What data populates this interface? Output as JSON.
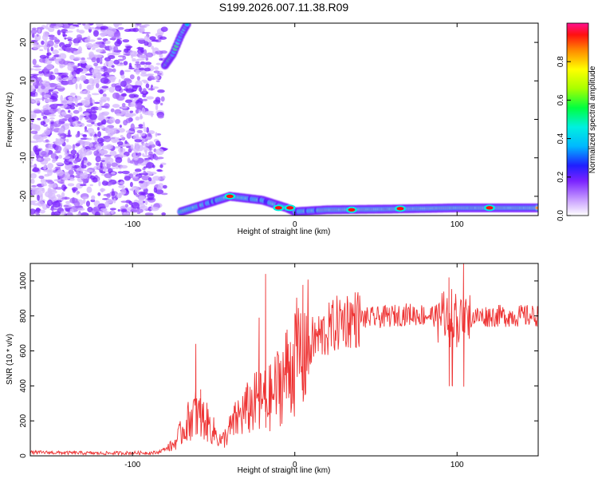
{
  "title": "S199.2026.007.11.38.R09",
  "chart_data": [
    {
      "type": "heatmap",
      "xlabel": "Height of straight line (km)",
      "ylabel": "Frequency (Hz)",
      "xlim": [
        -163,
        150
      ],
      "ylim": [
        -25,
        25
      ],
      "x_ticks": [
        -100,
        0,
        100
      ],
      "y_ticks": [
        -20,
        -10,
        0,
        10,
        20
      ],
      "colorbar": {
        "label": "Normalized spectral amplitude",
        "range": [
          0,
          1
        ],
        "ticks": [
          0.0,
          0.2,
          0.4,
          0.6,
          0.8
        ]
      },
      "features": {
        "noise_region_x": [
          -163,
          -80
        ],
        "band_ridge": [
          [
            -70,
            -24
          ],
          [
            -55,
            -22
          ],
          [
            -40,
            -20
          ],
          [
            -20,
            -21
          ],
          [
            -5,
            -23
          ],
          [
            0,
            -24
          ],
          [
            20,
            -23.5
          ],
          [
            60,
            -23.3
          ],
          [
            100,
            -23
          ],
          [
            150,
            -23
          ]
        ],
        "rising_ridge": [
          [
            -80,
            14
          ],
          [
            -75,
            17
          ],
          [
            -70,
            22
          ],
          [
            -66,
            25
          ]
        ],
        "peak_spots": [
          [
            -40,
            -20
          ],
          [
            -10,
            -23
          ],
          [
            -3,
            -23
          ],
          [
            35,
            -23.5
          ],
          [
            65,
            -23.2
          ],
          [
            120,
            -23
          ]
        ]
      }
    },
    {
      "type": "line",
      "xlabel": "Height of straight line (km)",
      "ylabel": "SNR (10 * v/v)",
      "xlim": [
        -163,
        150
      ],
      "ylim": [
        0,
        1100
      ],
      "x_ticks": [
        -100,
        0,
        100
      ],
      "y_ticks": [
        0,
        200,
        400,
        600,
        800,
        1000
      ],
      "line_color": "#ee3333",
      "series_envelope": [
        {
          "x": -163,
          "y": 20
        },
        {
          "x": -120,
          "y": 15
        },
        {
          "x": -85,
          "y": 18
        },
        {
          "x": -75,
          "y": 60
        },
        {
          "x": -62,
          "y": 250
        },
        {
          "x": -55,
          "y": 200
        },
        {
          "x": -45,
          "y": 80
        },
        {
          "x": -35,
          "y": 220
        },
        {
          "x": -25,
          "y": 300
        },
        {
          "x": -15,
          "y": 330
        },
        {
          "x": -5,
          "y": 480
        },
        {
          "x": 5,
          "y": 620
        },
        {
          "x": 15,
          "y": 680
        },
        {
          "x": 30,
          "y": 780
        },
        {
          "x": 50,
          "y": 790
        },
        {
          "x": 70,
          "y": 810
        },
        {
          "x": 90,
          "y": 800
        },
        {
          "x": 105,
          "y": 790
        },
        {
          "x": 120,
          "y": 800
        },
        {
          "x": 150,
          "y": 800
        }
      ],
      "spikes": [
        {
          "x": -61,
          "y": 640
        },
        {
          "x": -58,
          "y": 380
        },
        {
          "x": -22,
          "y": 790
        },
        {
          "x": -18,
          "y": 1040
        },
        {
          "x": 5,
          "y": 850
        },
        {
          "x": 95,
          "y": 1020
        },
        {
          "x": 97,
          "y": 400
        },
        {
          "x": 104,
          "y": 1100
        }
      ]
    }
  ]
}
